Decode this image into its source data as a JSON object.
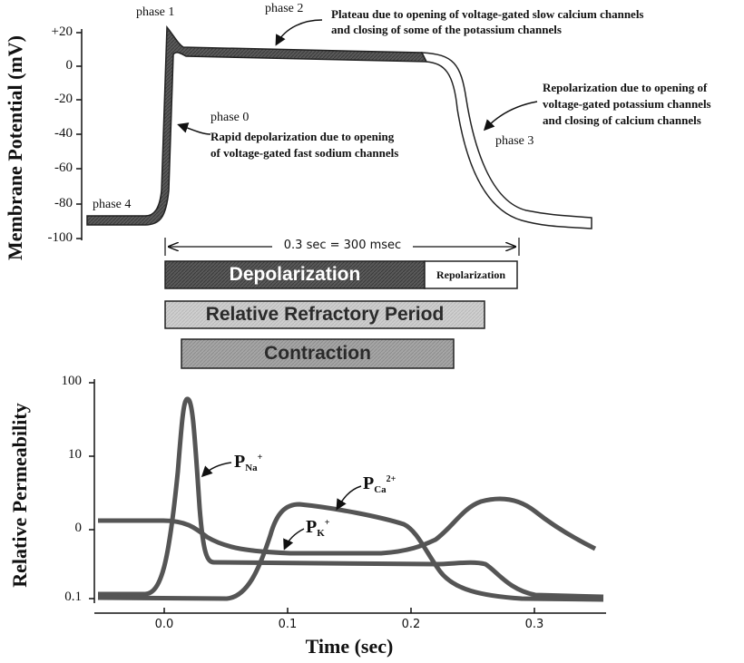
{
  "top_chart": {
    "ylabel": "Membrane Potential (mV)",
    "yticks": [
      "+20",
      "0",
      "-20",
      "-40",
      "-60",
      "-80",
      "-100"
    ],
    "annotations": {
      "phase1": "phase 1",
      "phase2": "phase 2",
      "phase0": "phase 0",
      "phase3": "phase 3",
      "phase4": "phase 4",
      "plateau_line1": "Plateau due to opening of voltage-gated slow calcium channels",
      "plateau_line2": "and closing of some of the potassium channels",
      "depol_line1": "Rapid depolarization due to opening",
      "depol_line2": "of voltage-gated fast sodium channels",
      "repol_line1": "Repolarization due to opening of",
      "repol_line2": "voltage-gated potassium channels",
      "repol_line3": "and closing of calcium channels"
    },
    "duration_label": "0.3 sec = 300 msec"
  },
  "bars": {
    "depolarization": "Depolarization",
    "repolarization": "Repolarization",
    "relative_refractory": "Relative Refractory Period",
    "contraction": "Contraction"
  },
  "bottom_chart": {
    "ylabel": "Relative Permeability",
    "yticks": [
      "100",
      "10",
      "0",
      "0.1"
    ],
    "xticks": [
      "0.0",
      "0.1",
      "0.2",
      "0.3"
    ],
    "xlabel": "Time (sec)",
    "labels": {
      "na_main": "P",
      "na_sub": "Na",
      "na_sup": "+",
      "ca_main": "P",
      "ca_sub": "Ca",
      "ca_sup": "2+",
      "k_main": "P",
      "k_sub": "K",
      "k_sup": "+"
    }
  },
  "colors": {
    "dark_fill": "#5a5a5a",
    "light_fill": "#c8c8c8",
    "medium_fill": "#a8a8a8",
    "curve": "#555555"
  }
}
